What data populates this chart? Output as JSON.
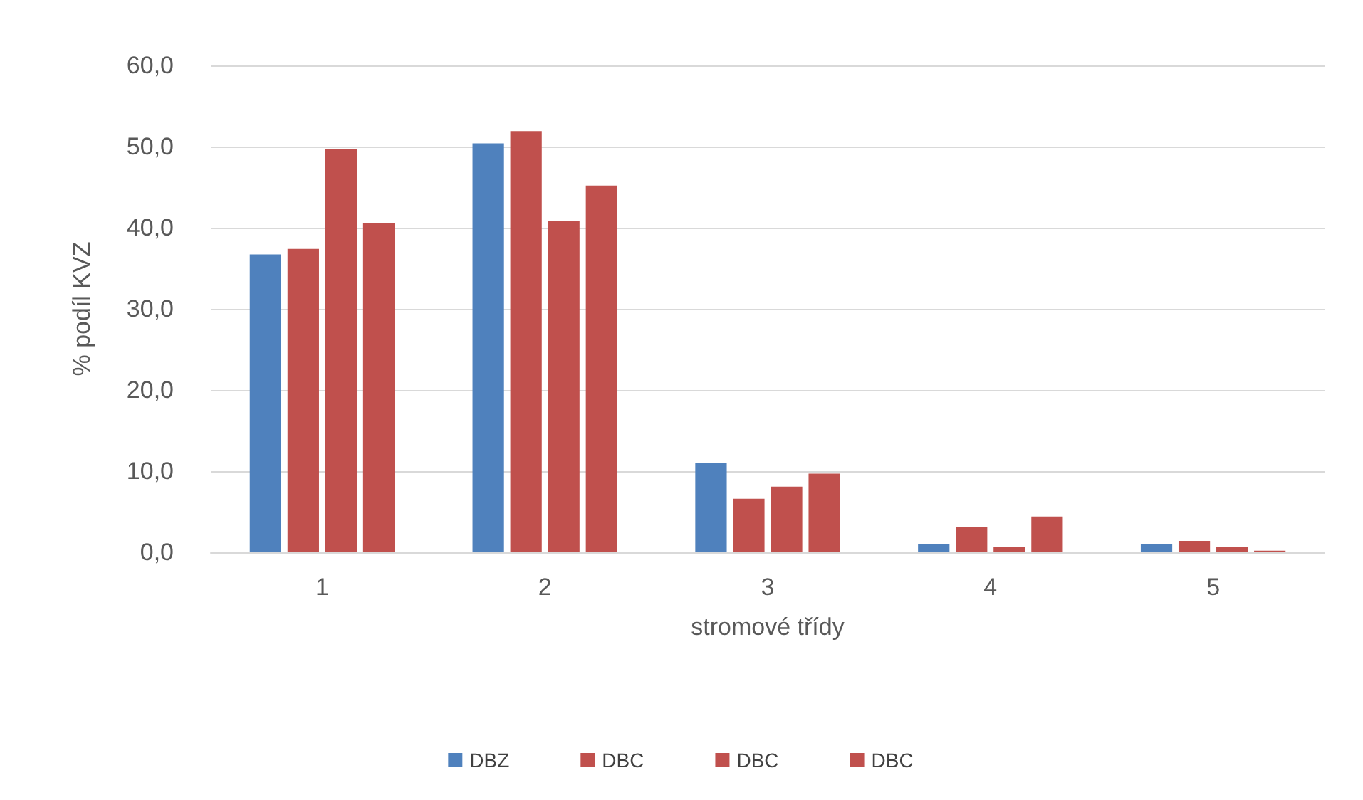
{
  "chart_data": {
    "type": "bar",
    "xlabel": "stromové třídy",
    "ylabel": "% podíl KVZ",
    "categories": [
      "1",
      "2",
      "3",
      "4",
      "5"
    ],
    "series": [
      {
        "name": "DBZ",
        "color": "#4f81bd",
        "values": [
          36.7,
          50.4,
          11.0,
          1.0,
          1.0
        ]
      },
      {
        "name": "DBC",
        "color": "#c0504d",
        "values": [
          37.4,
          51.9,
          6.6,
          3.1,
          1.4
        ]
      },
      {
        "name": "DBC",
        "color": "#c0504d",
        "values": [
          49.7,
          40.8,
          8.1,
          0.7,
          0.7
        ]
      },
      {
        "name": "DBC",
        "color": "#c0504d",
        "values": [
          40.6,
          45.2,
          9.7,
          4.4,
          0.2
        ]
      }
    ],
    "ylim": [
      0,
      60
    ],
    "yticks": [
      {
        "value": 0,
        "label": "0,0"
      },
      {
        "value": 10,
        "label": "10,0"
      },
      {
        "value": 20,
        "label": "20,0"
      },
      {
        "value": 30,
        "label": "30,0"
      },
      {
        "value": 40,
        "label": "40,0"
      },
      {
        "value": 50,
        "label": "50,0"
      },
      {
        "value": 60,
        "label": "60,0"
      }
    ],
    "grid": "y",
    "legend": "bottom"
  }
}
